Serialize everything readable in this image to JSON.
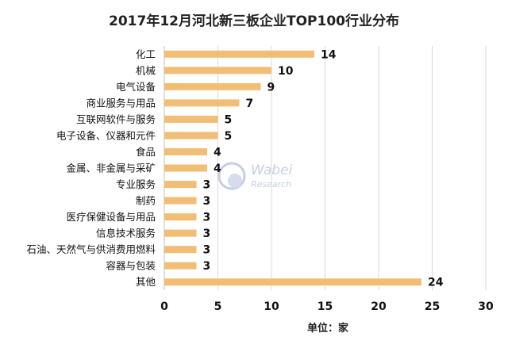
{
  "chart_data": {
    "type": "bar",
    "orientation": "horizontal",
    "title": "2017年12月河北新三板企业TOP100行业分布",
    "xlabel": "单位：家",
    "categories": [
      "化工",
      "机械",
      "电气设备",
      "商业服务与用品",
      "互联网软件与服务",
      "电子设备、仪器和元件",
      "食品",
      "金属、非金属与采矿",
      "专业服务",
      "制药",
      "医疗保健设备与用品",
      "信息技术服务",
      "石油、天然气与供消费用燃料",
      "容器与包装",
      "其他"
    ],
    "values": [
      14,
      10,
      9,
      7,
      5,
      5,
      4,
      4,
      3,
      3,
      3,
      3,
      3,
      3,
      24
    ],
    "xlim": [
      0,
      30
    ],
    "xticks": [
      0,
      5,
      10,
      15,
      20,
      25,
      30
    ],
    "grid": true,
    "bar_color": "#F2BE76",
    "data_labels": true
  },
  "watermark": {
    "brand": "Wabei",
    "sub": "Research",
    "icon": "wabei-logo-icon"
  }
}
